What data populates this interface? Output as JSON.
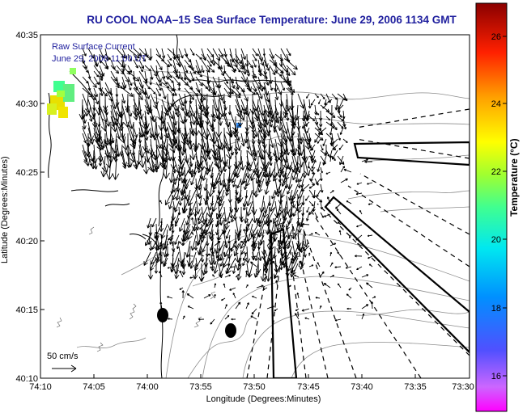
{
  "title": "RU COOL  NOAA–15  Sea Surface Temperature:  June 29, 2006 1134 GMT",
  "legend": {
    "line1": "Raw Surface Current",
    "line2": "June 29, 2006 11:00 UT"
  },
  "scale_label": "50 cm/s",
  "x_axis": {
    "title": "Longitude (Degrees:Minutes)",
    "ticks": [
      "74:10",
      "74:05",
      "74:00",
      "73:55",
      "73:50",
      "73:45",
      "73:40",
      "73:35",
      "73:30"
    ]
  },
  "y_axis": {
    "title": "Latitude (Degrees:Minutes)",
    "ticks": [
      "40:35",
      "40:30",
      "40:25",
      "40:20",
      "40:15",
      "40:10"
    ]
  },
  "colorbar": {
    "label": "Temperature (°C)",
    "ticks": [
      "26",
      "24",
      "22",
      "20",
      "18",
      "16"
    ],
    "range": [
      15,
      27.2
    ]
  },
  "colors": {
    "title": "#1f1f9e",
    "land_outline": "#000000",
    "bathymetry": "#8c8c8c",
    "arrows": "#000000"
  }
}
